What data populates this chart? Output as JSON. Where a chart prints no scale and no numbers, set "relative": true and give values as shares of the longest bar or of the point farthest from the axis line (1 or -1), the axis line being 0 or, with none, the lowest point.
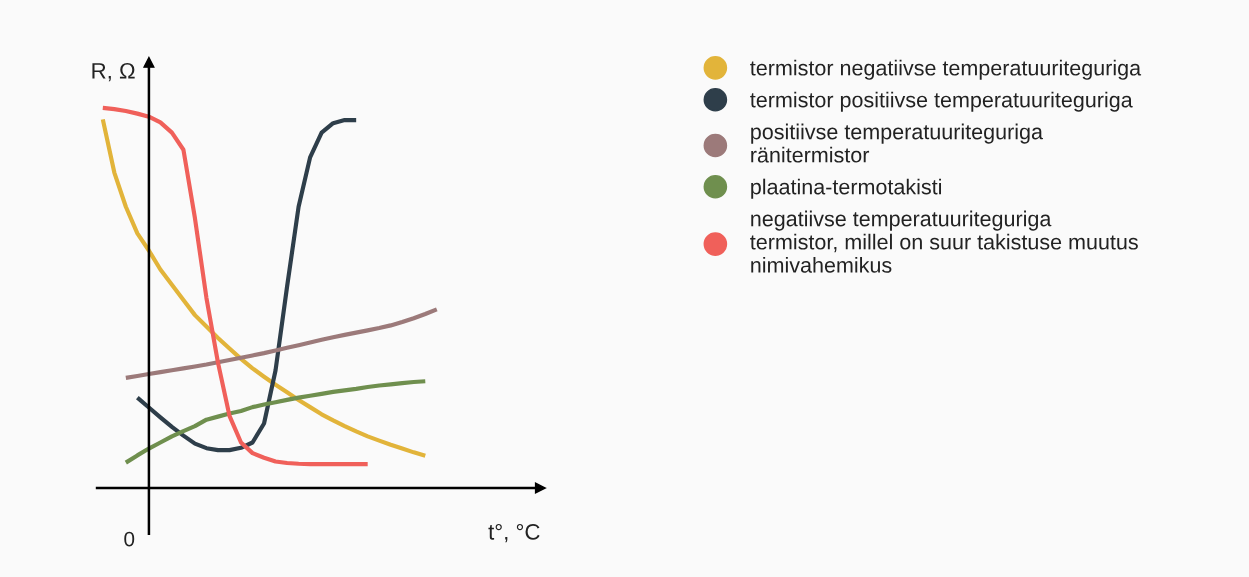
{
  "chart_data": {
    "type": "line",
    "relative": true,
    "xlabel": "t°, °C",
    "ylabel": "R, Ω",
    "annotations": [
      "0"
    ],
    "legend": "right",
    "marker": "none",
    "line_style": "solid",
    "categories": [
      null,
      null,
      null,
      null,
      null,
      null,
      null,
      null,
      null,
      null,
      null,
      null,
      null,
      null,
      null,
      null,
      null,
      null,
      null,
      null,
      null,
      null,
      null,
      null,
      null,
      null,
      null,
      null,
      null,
      null
    ],
    "series": [
      {
        "name": "termistor negatiivse temperatuuriteguriga",
        "color": "#e2b43a",
        "values": [
          0.97,
          0.83,
          0.74,
          0.67,
          0.625,
          0.575,
          0.535,
          0.495,
          0.455,
          0.425,
          0.395,
          0.367,
          0.34,
          0.315,
          0.293,
          0.272,
          0.252,
          0.232,
          0.213,
          0.194,
          0.178,
          0.163,
          0.149,
          0.136,
          0.125,
          0.114,
          0.104,
          0.094,
          0.085,
          null
        ]
      },
      {
        "name": "termistor positiivse temperatuuriteguriga",
        "color": "#2e3e4a",
        "values": [
          null,
          null,
          null,
          0.238,
          0.212,
          0.186,
          0.161,
          0.138,
          0.117,
          0.105,
          0.1,
          0.1,
          0.106,
          0.12,
          0.17,
          0.31,
          0.53,
          0.74,
          0.87,
          0.935,
          0.96,
          0.968,
          0.968,
          null,
          null,
          null,
          null,
          null,
          null,
          null
        ]
      },
      {
        "name": "positiivse temperatuuriteguriga\nränitermistor",
        "color": "#9c7a7a",
        "values": [
          null,
          null,
          0.29,
          0.295,
          0.3,
          0.305,
          0.31,
          0.315,
          0.32,
          0.325,
          0.331,
          0.337,
          0.343,
          0.349,
          0.355,
          0.362,
          0.369,
          0.376,
          0.383,
          0.39,
          0.397,
          0.403,
          0.409,
          0.415,
          0.421,
          0.428,
          0.437,
          0.447,
          0.458,
          0.47
        ]
      },
      {
        "name": "plaatina-termotakisti",
        "color": "#6f8f4e",
        "values": [
          null,
          null,
          0.067,
          0.086,
          0.104,
          0.12,
          0.136,
          0.15,
          0.163,
          0.18,
          0.188,
          0.196,
          0.203,
          0.213,
          0.22,
          0.226,
          0.232,
          0.238,
          0.243,
          0.248,
          0.253,
          0.257,
          0.261,
          0.266,
          0.27,
          0.273,
          0.276,
          0.279,
          0.281,
          null
        ]
      },
      {
        "name": "negatiivse temperatuuriteguriga\ntermistor, millel on suur takistuse muutus\nnimivahemikus",
        "color": "#f0605a",
        "values": [
          1.0,
          0.997,
          0.992,
          0.985,
          0.977,
          0.962,
          0.935,
          0.89,
          0.71,
          0.5,
          0.33,
          0.19,
          0.12,
          0.092,
          0.08,
          0.07,
          0.066,
          0.064,
          0.063,
          0.063,
          0.063,
          0.063,
          0.063,
          0.063,
          null,
          null,
          null,
          null,
          null,
          null
        ]
      }
    ]
  }
}
